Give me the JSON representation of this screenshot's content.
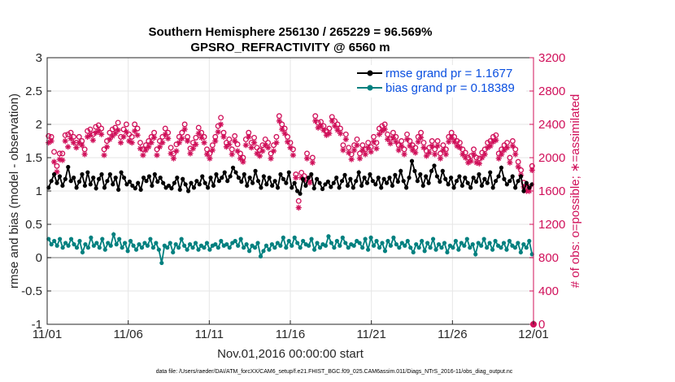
{
  "chart_data": {
    "type": "line",
    "title": "Southern Hemisphere 256130 / 265229 = 96.569%",
    "subtitle": "GPSRO_REFRACTIVITY @ 6560 m",
    "xlabel": "Nov.01,2016 00:00:00 start",
    "ylabel": "rmse and bias (model - observation)",
    "ylabel_right": "# of obs: o=possible; ∗=assimilated",
    "footnote": "data file: /Users/raeder/DAI/ATM_forcXX/CAM6_setup/f.e21.FHIST_BGC.f09_025.CAM6assim.011/Diags_NTrS_2016-11/obs_diag_output.nc",
    "x_ticks": [
      "11/01",
      "11/06",
      "11/11",
      "11/16",
      "11/21",
      "11/26",
      "12/01"
    ],
    "y_ticks": [
      "-1",
      "-0.5",
      "0",
      "0.5",
      "1",
      "1.5",
      "2",
      "2.5",
      "3"
    ],
    "y_ticks_right": [
      "0",
      "400",
      "800",
      "1200",
      "1600",
      "2000",
      "2400",
      "2800",
      "3200"
    ],
    "xlim": [
      0,
      30
    ],
    "ylim": [
      -1,
      3
    ],
    "ylim_right": [
      0,
      3200
    ],
    "legend_position": "top-right",
    "colors": {
      "rmse": "#000000",
      "bias": "#00807f",
      "obs": "#d0105a",
      "zero_line": "#a6a6a6",
      "legend_text": "#0a4fe0"
    },
    "series": [
      {
        "name": "rmse grand pr = 1.1677",
        "key": "rmse",
        "values": [
          1.05,
          1.15,
          1.25,
          1.12,
          1.22,
          1.08,
          1.18,
          1.36,
          1.15,
          1.2,
          1.05,
          1.14,
          1.25,
          1.08,
          1.28,
          1.1,
          1.2,
          1.04,
          1.18,
          1.25,
          1.05,
          1.15,
          1.25,
          1.1,
          1.2,
          1.02,
          1.28,
          1.2,
          1.1,
          1.14,
          1.08,
          1.04,
          1.12,
          1.02,
          1.2,
          1.15,
          1.22,
          1.08,
          1.25,
          1.14,
          1.2,
          1.12,
          1.05,
          1.08,
          1.04,
          1.12,
          1.2,
          1.02,
          1.18,
          1.1,
          1.0,
          1.12,
          1.05,
          1.15,
          1.1,
          1.22,
          1.12,
          1.05,
          1.2,
          1.08,
          1.25,
          1.15,
          1.2,
          1.28,
          1.15,
          1.22,
          1.35,
          1.28,
          1.2,
          1.14,
          1.25,
          1.08,
          1.2,
          1.12,
          1.3,
          1.15,
          1.05,
          1.22,
          1.1,
          1.2,
          1.08,
          1.15,
          1.05,
          1.25,
          1.18,
          1.12,
          1.28,
          1.05,
          1.12,
          1.0,
          0.96,
          1.18,
          1.08,
          1.2,
          1.25,
          1.04,
          1.18,
          1.12,
          1.03,
          1.1,
          1.14,
          1.06,
          1.12,
          1.2,
          1.05,
          1.15,
          1.24,
          1.08,
          1.18,
          1.05,
          1.15,
          1.28,
          1.08,
          1.2,
          1.12,
          1.25,
          1.15,
          1.1,
          1.2,
          1.05,
          1.18,
          1.12,
          1.2,
          1.08,
          1.24,
          1.14,
          1.3,
          1.15,
          1.05,
          1.2,
          1.45,
          1.3,
          1.15,
          1.25,
          1.08,
          1.22,
          1.12,
          1.3,
          1.38,
          1.22,
          1.14,
          1.3,
          1.18,
          1.1,
          1.2,
          1.05,
          1.15,
          1.22,
          1.08,
          1.2,
          1.12,
          1.05,
          1.2,
          1.14,
          1.25,
          1.08,
          1.18,
          1.12,
          1.28,
          1.05,
          1.15,
          1.22,
          1.35,
          1.18,
          1.1,
          1.15,
          1.22,
          1.05,
          1.15,
          1.22,
          1.0,
          1.12,
          1.05,
          1.1
        ]
      },
      {
        "name": "bias grand pr = 0.18389",
        "key": "bias",
        "values": [
          0.28,
          0.2,
          0.25,
          0.18,
          0.28,
          0.15,
          0.22,
          0.18,
          0.28,
          0.2,
          0.15,
          0.25,
          0.08,
          0.2,
          0.15,
          0.3,
          0.18,
          0.22,
          0.15,
          0.28,
          0.12,
          0.22,
          0.18,
          0.35,
          0.2,
          0.28,
          0.15,
          0.22,
          0.1,
          0.25,
          0.18,
          0.12,
          0.2,
          0.15,
          0.22,
          0.18,
          0.28,
          0.15,
          0.22,
          0.12,
          -0.08,
          0.18,
          0.15,
          0.22,
          0.08,
          0.2,
          0.15,
          0.28,
          0.18,
          0.12,
          0.2,
          0.15,
          0.22,
          0.12,
          0.18,
          0.15,
          0.22,
          0.12,
          0.18,
          0.2,
          0.15,
          0.25,
          0.18,
          0.2,
          0.15,
          0.22,
          0.25,
          0.18,
          0.28,
          0.15,
          0.2,
          0.1,
          0.18,
          0.15,
          0.22,
          0.02,
          0.1,
          0.18,
          0.12,
          0.2,
          0.15,
          0.22,
          0.18,
          0.3,
          0.15,
          0.25,
          0.18,
          0.3,
          0.22,
          0.15,
          0.25,
          0.2,
          0.18,
          0.28,
          0.12,
          0.22,
          0.15,
          0.2,
          0.18,
          0.32,
          0.22,
          0.15,
          0.25,
          0.18,
          0.3,
          0.22,
          0.15,
          0.2,
          0.18,
          0.25,
          0.22,
          0.15,
          0.28,
          0.12,
          0.3,
          0.18,
          0.25,
          0.15,
          0.22,
          0.1,
          0.25,
          0.18,
          0.3,
          0.2,
          0.15,
          0.22,
          0.18,
          0.25,
          0.15,
          0.08,
          0.2,
          0.15,
          0.25,
          0.1,
          0.22,
          0.15,
          0.28,
          0.12,
          0.2,
          0.15,
          0.22,
          0.08,
          0.18,
          0.15,
          0.25,
          0.12,
          0.22,
          0.18,
          0.28,
          0.15,
          0.2,
          0.05,
          0.22,
          0.18,
          0.28,
          0.15,
          0.22,
          0.12,
          0.25,
          0.18,
          0.15,
          0.22,
          0.12,
          0.25,
          0.18,
          0.15,
          0.22,
          0.08,
          0.2,
          0.15,
          0.25,
          0.05
        ]
      },
      {
        "name": "possible",
        "key": "possible",
        "marker": "o",
        "values": [
          2260,
          2250,
          2070,
          1900,
          2050,
          2050,
          2270,
          2280,
          2300,
          2250,
          2180,
          2250,
          2200,
          2100,
          2320,
          2340,
          2280,
          2370,
          2390,
          2350,
          2100,
          2200,
          2300,
          2340,
          2360,
          2420,
          2250,
          2340,
          2400,
          2280,
          2250,
          2400,
          2350,
          2180,
          2100,
          2150,
          2200,
          2250,
          2300,
          2100,
          2200,
          2250,
          2350,
          2300,
          2120,
          2050,
          2160,
          2250,
          2300,
          2400,
          2250,
          2110,
          2180,
          2240,
          2360,
          2300,
          2250,
          2100,
          2050,
          2150,
          2250,
          2380,
          2480,
          2300,
          2180,
          2220,
          2100,
          2260,
          2160,
          2050,
          2000,
          2220,
          2300,
          2180,
          2240,
          2120,
          2090,
          2150,
          2220,
          2180,
          2050,
          2150,
          2250,
          2500,
          2400,
          2350,
          2250,
          2180,
          2100,
          1800,
          1480,
          1820,
          1780,
          2050,
          1750,
          2000,
          2500,
          2420,
          2430,
          2380,
          2320,
          2350,
          2490,
          2440,
          2400,
          2350,
          2150,
          2280,
          2120,
          2040,
          2150,
          2220,
          2050,
          2150,
          2100,
          2180,
          2130,
          2250,
          2180,
          2350,
          2380,
          2400,
          2280,
          2230,
          2300,
          2250,
          2150,
          2200,
          2100,
          2280,
          2200,
          2150,
          2120,
          2250,
          2300,
          2180,
          2080,
          2120,
          2200,
          2100,
          2200,
          2050,
          2150,
          2100,
          2250,
          2300,
          2250,
          2200,
          2180,
          2100,
          2060,
          2000,
          2020,
          2100,
          2000,
          1990,
          2060,
          2100,
          2180,
          2200,
          2250,
          2270,
          2050,
          2100,
          2150,
          2180,
          2000,
          2200,
          2100,
          1950,
          1850,
          1700,
          1640,
          1650,
          1900
        ]
      },
      {
        "name": "assimilated",
        "key": "assimilated",
        "marker": "*",
        "values": [
          2180,
          2200,
          1950,
          1830,
          1980,
          1970,
          2200,
          2130,
          2230,
          2180,
          2120,
          2180,
          2150,
          2040,
          2250,
          2270,
          2210,
          2300,
          2320,
          2280,
          2030,
          2130,
          2220,
          2260,
          2290,
          2330,
          2180,
          2250,
          2310,
          2200,
          2180,
          2320,
          2270,
          2110,
          2030,
          2090,
          2130,
          2180,
          2240,
          2030,
          2130,
          2180,
          2280,
          2230,
          2050,
          1990,
          2080,
          2180,
          2230,
          2340,
          2200,
          2050,
          2110,
          2160,
          2290,
          2240,
          2180,
          2040,
          1990,
          2090,
          2200,
          2310,
          2400,
          2250,
          2130,
          2160,
          2040,
          2200,
          2080,
          1990,
          1950,
          2150,
          2250,
          2120,
          2180,
          2050,
          2020,
          2080,
          2150,
          2120,
          1990,
          2080,
          2180,
          2440,
          2340,
          2290,
          2190,
          2120,
          2030,
          1760,
          1400,
          1760,
          1730,
          1990,
          1700,
          1940,
          2440,
          2360,
          2380,
          2330,
          2270,
          2290,
          2440,
          2380,
          2330,
          2290,
          2090,
          2220,
          2060,
          1980,
          2090,
          2150,
          1990,
          2090,
          2040,
          2120,
          2070,
          2190,
          2110,
          2280,
          2320,
          2340,
          2220,
          2170,
          2240,
          2190,
          2090,
          2140,
          2040,
          2220,
          2140,
          2090,
          2060,
          2190,
          2240,
          2120,
          2020,
          2060,
          2140,
          2040,
          2140,
          1990,
          2090,
          2040,
          2190,
          2240,
          2190,
          2140,
          2120,
          2040,
          2000,
          1940,
          1960,
          2040,
          1940,
          1930,
          2000,
          2040,
          2120,
          2140,
          2190,
          2210,
          1990,
          2040,
          2090,
          2120,
          1940,
          2140,
          2040,
          1890,
          1790,
          1650,
          1600,
          1600,
          1850
        ]
      }
    ]
  }
}
